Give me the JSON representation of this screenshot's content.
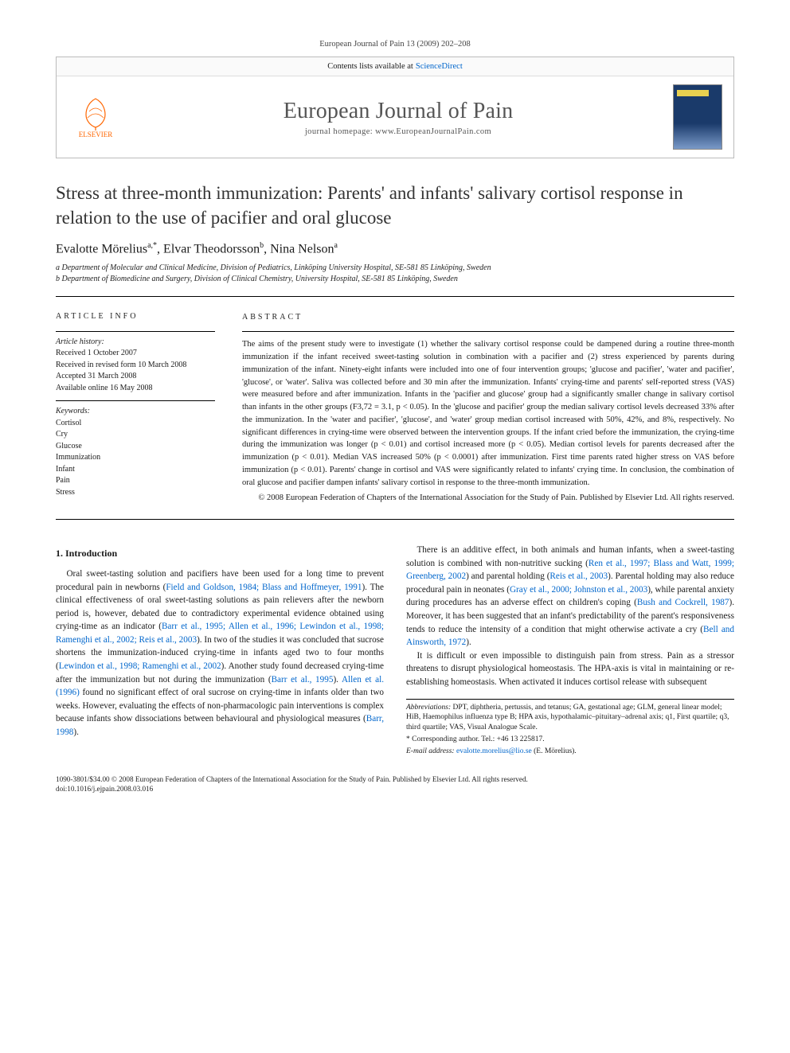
{
  "running_head": "European Journal of Pain 13 (2009) 202–208",
  "header": {
    "contents_line_prefix": "Contents lists available at",
    "contents_link": "ScienceDirect",
    "journal_title": "European Journal of Pain",
    "homepage_label": "journal homepage:",
    "homepage_url": "www.EuropeanJournalPain.com",
    "publisher": "ELSEVIER"
  },
  "article": {
    "title": "Stress at three-month immunization: Parents' and infants' salivary cortisol response in relation to the use of pacifier and oral glucose",
    "authors_html": "Evalotte Mörelius<sup>a,*</sup>, Elvar Theodorsson<sup>b</sup>, Nina Nelson<sup>a</sup>",
    "affiliations": [
      "a Department of Molecular and Clinical Medicine, Division of Pediatrics, Linköping University Hospital, SE-581 85 Linköping, Sweden",
      "b Department of Biomedicine and Surgery, Division of Clinical Chemistry, University Hospital, SE-581 85 Linköping, Sweden"
    ]
  },
  "info": {
    "heading": "ARTICLE INFO",
    "history_label": "Article history:",
    "history": [
      "Received 1 October 2007",
      "Received in revised form 10 March 2008",
      "Accepted 31 March 2008",
      "Available online 16 May 2008"
    ],
    "keywords_label": "Keywords:",
    "keywords": [
      "Cortisol",
      "Cry",
      "Glucose",
      "Immunization",
      "Infant",
      "Pain",
      "Stress"
    ]
  },
  "abstract": {
    "heading": "ABSTRACT",
    "body": "The aims of the present study were to investigate (1) whether the salivary cortisol response could be dampened during a routine three-month immunization if the infant received sweet-tasting solution in combination with a pacifier and (2) stress experienced by parents during immunization of the infant. Ninety-eight infants were included into one of four intervention groups; 'glucose and pacifier', 'water and pacifier', 'glucose', or 'water'. Saliva was collected before and 30 min after the immunization. Infants' crying-time and parents' self-reported stress (VAS) were measured before and after immunization. Infants in the 'pacifier and glucose' group had a significantly smaller change in salivary cortisol than infants in the other groups (F3,72 = 3.1, p < 0.05). In the 'glucose and pacifier' group the median salivary cortisol levels decreased 33% after the immunization. In the 'water and pacifier', 'glucose', and 'water' group median cortisol increased with 50%, 42%, and 8%, respectively. No significant differences in crying-time were observed between the intervention groups. If the infant cried before the immunization, the crying-time during the immunization was longer (p < 0.01) and cortisol increased more (p < 0.05). Median cortisol levels for parents decreased after the immunization (p < 0.01). Median VAS increased 50% (p < 0.0001) after immunization. First time parents rated higher stress on VAS before immunization (p < 0.01). Parents' change in cortisol and VAS were significantly related to infants' crying time. In conclusion, the combination of oral glucose and pacifier dampen infants' salivary cortisol in response to the three-month immunization.",
    "copyright": "© 2008 European Federation of Chapters of the International Association for the Study of Pain. Published by Elsevier Ltd. All rights reserved."
  },
  "intro": {
    "heading": "1. Introduction",
    "p1_pre": "Oral sweet-tasting solution and pacifiers have been used for a long time to prevent procedural pain in newborns (",
    "p1_ref1": "Field and Goldson, 1984; Blass and Hoffmeyer, 1991",
    "p1_mid1": "). The clinical effectiveness of oral sweet-tasting solutions as pain relievers after the newborn period is, however, debated due to contradictory experimental evidence obtained using crying-time as an indicator (",
    "p1_ref2": "Barr et al., 1995; Allen et al., 1996; Lewindon et al., 1998; Ramenghi et al., 2002; Reis et al., 2003",
    "p1_mid2": "). In two of the studies it was concluded that sucrose shortens the immunization-induced crying-time in infants aged two to four months (",
    "p1_ref3": "Lewindon et al., 1998; Ramenghi et al., 2002",
    "p1_mid3": "). Another study found decreased crying-time after the immunization but not during the immunization (",
    "p1_ref4": "Barr et al., 1995",
    "p1_mid4": "). ",
    "p1_ref5": "Allen et al. (1996)",
    "p1_post": " found no significant effect of oral sucrose on crying-time in infants older than two weeks. However, evaluating the effects of non-pharmacologic pain interventions is complex because infants show dissociations between behavioural and physiological measures (",
    "p1_ref6": "Barr, 1998",
    "p1_end": ").",
    "p2_pre": "There is an additive effect, in both animals and human infants, when a sweet-tasting solution is combined with non-nutritive sucking (",
    "p2_ref1": "Ren et al., 1997; Blass and Watt, 1999; Greenberg, 2002",
    "p2_mid1": ") and parental holding (",
    "p2_ref2": "Reis et al., 2003",
    "p2_mid2": "). Parental holding may also reduce procedural pain in neonates (",
    "p2_ref3": "Gray et al., 2000; Johnston et al., 2003",
    "p2_mid3": "), while parental anxiety during procedures has an adverse effect on children's coping (",
    "p2_ref4": "Bush and Cockrell, 1987",
    "p2_mid4": "). Moreover, it has been suggested that an infant's predictability of the parent's responsiveness tends to reduce the intensity of a condition that might otherwise activate a cry (",
    "p2_ref5": "Bell and Ainsworth, 1972",
    "p2_end": ").",
    "p3": "It is difficult or even impossible to distinguish pain from stress. Pain as a stressor threatens to disrupt physiological homeostasis. The HPA-axis is vital in maintaining or re-establishing homeostasis. When activated it induces cortisol release with subsequent"
  },
  "footnotes": {
    "abbrev_label": "Abbreviations:",
    "abbrev": " DPT, diphtheria, pertussis, and tetanus; GA, gestational age; GLM, general linear model; HiB, Haemophilus influenza type B; HPA axis, hypothalamic–pituitary–adrenal axis; q1, First quartile; q3, third quartile; VAS, Visual Analogue Scale.",
    "corr_label": "* Corresponding author.",
    "corr": " Tel.: +46 13 225817.",
    "email_label": "E-mail address:",
    "email": "evalotte.morelius@lio.se",
    "email_tail": " (E. Mörelius)."
  },
  "footer": {
    "line1": "1090-3801/$34.00 © 2008 European Federation of Chapters of the International Association for the Study of Pain. Published by Elsevier Ltd. All rights reserved.",
    "line2": "doi:10.1016/j.ejpain.2008.03.016"
  },
  "colors": {
    "link": "#0066cc",
    "elsevier_orange": "#ff6600",
    "rule": "#000000",
    "border_grey": "#bbbbbb"
  }
}
